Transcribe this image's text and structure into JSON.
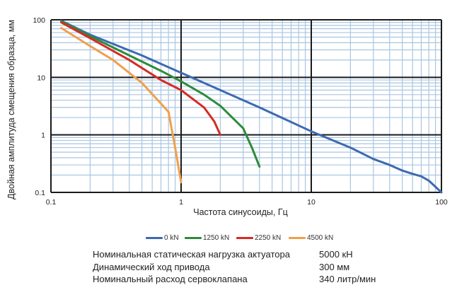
{
  "chart_data": {
    "type": "line",
    "xscale": "log",
    "yscale": "log",
    "xlim": [
      0.1,
      100
    ],
    "ylim": [
      0.1,
      100
    ],
    "xlabel": "Частота синусоиды, Гц",
    "ylabel": "Двойная амплитуда смещения образца, мм",
    "xticks": [
      "0.1",
      "1",
      "10",
      "100"
    ],
    "yticks": [
      "100",
      "10",
      "1",
      "0.1"
    ],
    "grid": true,
    "legend_position": "bottom",
    "series": [
      {
        "name": "0 kN",
        "color": "#3d6ab0",
        "points": [
          [
            0.12,
            96
          ],
          [
            0.2,
            55
          ],
          [
            0.5,
            24
          ],
          [
            1,
            12
          ],
          [
            2,
            6
          ],
          [
            4,
            3
          ],
          [
            10,
            1.15
          ],
          [
            20,
            0.6
          ],
          [
            30,
            0.38
          ],
          [
            40,
            0.3
          ],
          [
            50,
            0.24
          ],
          [
            60,
            0.21
          ],
          [
            70,
            0.19
          ],
          [
            80,
            0.16
          ],
          [
            100,
            0.1
          ]
        ]
      },
      {
        "name": "1250 kN",
        "color": "#2e8b3a",
        "points": [
          [
            0.12,
            95
          ],
          [
            0.2,
            52
          ],
          [
            0.4,
            24
          ],
          [
            0.7,
            13
          ],
          [
            1,
            8.5
          ],
          [
            1.5,
            5
          ],
          [
            2,
            3.2
          ],
          [
            3,
            1.3
          ],
          [
            3.5,
            0.6
          ],
          [
            4,
            0.28
          ]
        ]
      },
      {
        "name": "2250 kN",
        "color": "#d62b24",
        "points": [
          [
            0.12,
            90
          ],
          [
            0.2,
            48
          ],
          [
            0.4,
            20
          ],
          [
            0.7,
            9
          ],
          [
            1,
            6
          ],
          [
            1.5,
            3
          ],
          [
            1.8,
            1.7
          ],
          [
            2,
            1
          ]
        ]
      },
      {
        "name": "4500 kN",
        "color": "#f0a04b",
        "points": [
          [
            0.12,
            72
          ],
          [
            0.2,
            35
          ],
          [
            0.3,
            20
          ],
          [
            0.5,
            8
          ],
          [
            0.7,
            3.5
          ],
          [
            0.8,
            2.5
          ],
          [
            0.85,
            1.2
          ],
          [
            0.9,
            0.6
          ],
          [
            1,
            0.15
          ]
        ]
      }
    ]
  },
  "legend": [
    {
      "label": "0 kN",
      "color": "#3d6ab0"
    },
    {
      "label": "1250 kN",
      "color": "#2e8b3a"
    },
    {
      "label": "2250 kN",
      "color": "#d62b24"
    },
    {
      "label": "4500 kN",
      "color": "#f0a04b"
    }
  ],
  "specs": [
    {
      "label": "Номинальная статическая нагрузка актуатора",
      "value": "5000 кН"
    },
    {
      "label": "Динамический ход привода",
      "value": "300 мм"
    },
    {
      "label": "Номинальный расход сервоклапана",
      "value": "340 литр/мин"
    }
  ]
}
